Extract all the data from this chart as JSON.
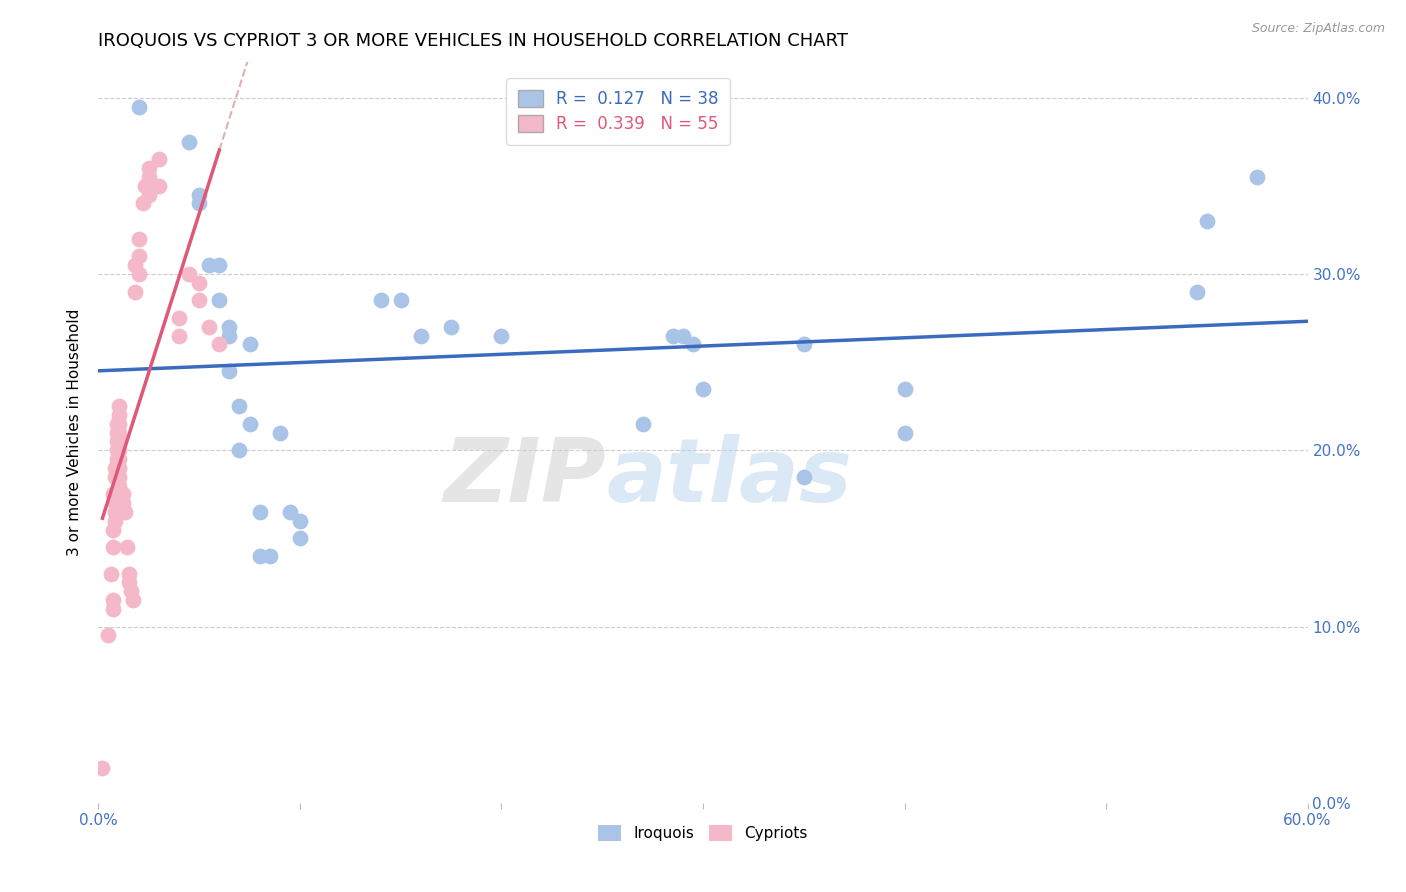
{
  "title": "IROQUOIS VS CYPRIOT 3 OR MORE VEHICLES IN HOUSEHOLD CORRELATION CHART",
  "source": "Source: ZipAtlas.com",
  "ylabel": "3 or more Vehicles in Household",
  "watermark_text": "ZIPatlas",
  "xlim": [
    0.0,
    0.6
  ],
  "ylim": [
    0.0,
    0.42
  ],
  "xticks": [
    0.0,
    0.1,
    0.2,
    0.3,
    0.4,
    0.5,
    0.6
  ],
  "xtick_labels": [
    "0.0%",
    "",
    "",
    "",
    "",
    "",
    "60.0%"
  ],
  "yticks": [
    0.0,
    0.1,
    0.2,
    0.3,
    0.4
  ],
  "ytick_labels_right": [
    "0.0%",
    "10.0%",
    "20.0%",
    "30.0%",
    "40.0%"
  ],
  "iroquois_color": "#aac4e8",
  "cypriot_color": "#f5b8c8",
  "trendline_iroquois_color": "#3a6bbf",
  "trendline_cypriot_color": "#e05878",
  "trendline_cypriot_dash_color": "#d09090",
  "iroquois_R": 0.127,
  "iroquois_N": 38,
  "cypriot_R": 0.339,
  "cypriot_N": 55,
  "iroquois_points": [
    [
      0.02,
      0.395
    ],
    [
      0.045,
      0.375
    ],
    [
      0.05,
      0.345
    ],
    [
      0.05,
      0.34
    ],
    [
      0.055,
      0.305
    ],
    [
      0.06,
      0.305
    ],
    [
      0.06,
      0.285
    ],
    [
      0.065,
      0.27
    ],
    [
      0.065,
      0.245
    ],
    [
      0.065,
      0.265
    ],
    [
      0.07,
      0.225
    ],
    [
      0.07,
      0.2
    ],
    [
      0.075,
      0.26
    ],
    [
      0.075,
      0.215
    ],
    [
      0.08,
      0.165
    ],
    [
      0.08,
      0.14
    ],
    [
      0.085,
      0.14
    ],
    [
      0.09,
      0.21
    ],
    [
      0.095,
      0.165
    ],
    [
      0.1,
      0.16
    ],
    [
      0.1,
      0.15
    ],
    [
      0.14,
      0.285
    ],
    [
      0.15,
      0.285
    ],
    [
      0.16,
      0.265
    ],
    [
      0.175,
      0.27
    ],
    [
      0.2,
      0.265
    ],
    [
      0.27,
      0.215
    ],
    [
      0.285,
      0.265
    ],
    [
      0.29,
      0.265
    ],
    [
      0.295,
      0.26
    ],
    [
      0.3,
      0.235
    ],
    [
      0.35,
      0.26
    ],
    [
      0.35,
      0.185
    ],
    [
      0.4,
      0.235
    ],
    [
      0.4,
      0.21
    ],
    [
      0.545,
      0.29
    ],
    [
      0.55,
      0.33
    ],
    [
      0.575,
      0.355
    ]
  ],
  "cypriot_points": [
    [
      0.002,
      0.02
    ],
    [
      0.005,
      0.095
    ],
    [
      0.006,
      0.13
    ],
    [
      0.007,
      0.115
    ],
    [
      0.007,
      0.11
    ],
    [
      0.007,
      0.145
    ],
    [
      0.007,
      0.155
    ],
    [
      0.007,
      0.175
    ],
    [
      0.008,
      0.16
    ],
    [
      0.008,
      0.165
    ],
    [
      0.008,
      0.17
    ],
    [
      0.008,
      0.185
    ],
    [
      0.008,
      0.19
    ],
    [
      0.009,
      0.195
    ],
    [
      0.009,
      0.2
    ],
    [
      0.009,
      0.205
    ],
    [
      0.009,
      0.21
    ],
    [
      0.009,
      0.215
    ],
    [
      0.01,
      0.22
    ],
    [
      0.01,
      0.225
    ],
    [
      0.01,
      0.215
    ],
    [
      0.01,
      0.21
    ],
    [
      0.01,
      0.205
    ],
    [
      0.01,
      0.2
    ],
    [
      0.01,
      0.195
    ],
    [
      0.01,
      0.19
    ],
    [
      0.01,
      0.185
    ],
    [
      0.01,
      0.18
    ],
    [
      0.012,
      0.175
    ],
    [
      0.012,
      0.17
    ],
    [
      0.013,
      0.165
    ],
    [
      0.014,
      0.145
    ],
    [
      0.015,
      0.13
    ],
    [
      0.015,
      0.125
    ],
    [
      0.016,
      0.12
    ],
    [
      0.017,
      0.115
    ],
    [
      0.018,
      0.29
    ],
    [
      0.018,
      0.305
    ],
    [
      0.02,
      0.3
    ],
    [
      0.02,
      0.31
    ],
    [
      0.02,
      0.32
    ],
    [
      0.022,
      0.34
    ],
    [
      0.023,
      0.35
    ],
    [
      0.025,
      0.36
    ],
    [
      0.025,
      0.355
    ],
    [
      0.025,
      0.345
    ],
    [
      0.03,
      0.365
    ],
    [
      0.03,
      0.35
    ],
    [
      0.04,
      0.275
    ],
    [
      0.04,
      0.265
    ],
    [
      0.045,
      0.3
    ],
    [
      0.05,
      0.295
    ],
    [
      0.05,
      0.285
    ],
    [
      0.055,
      0.27
    ],
    [
      0.06,
      0.26
    ]
  ],
  "background_color": "#ffffff",
  "grid_color": "#cccccc",
  "title_fontsize": 13,
  "tick_color": "#4472c4",
  "axis_tick_color": "#888888"
}
